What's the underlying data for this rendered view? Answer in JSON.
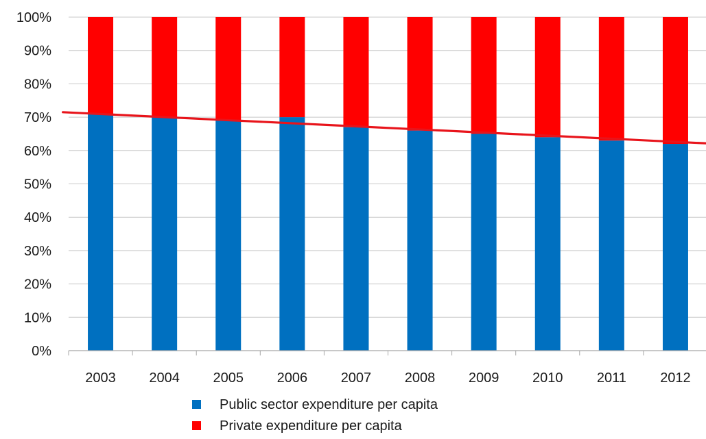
{
  "chart_data": {
    "type": "bar",
    "stacked": true,
    "percent_scale": true,
    "categories": [
      "2003",
      "2004",
      "2005",
      "2006",
      "2007",
      "2008",
      "2009",
      "2010",
      "2011",
      "2012"
    ],
    "series": [
      {
        "name": "Public sector expenditure per capita",
        "color": "#0070C0",
        "values": [
          71,
          70,
          69,
          70,
          67,
          66,
          65,
          64,
          63,
          62
        ]
      },
      {
        "name": "Private expenditure per capita",
        "color": "#FF0000",
        "values": [
          29,
          30,
          31,
          30,
          33,
          34,
          35,
          36,
          37,
          38
        ]
      }
    ],
    "ylim": [
      0,
      100
    ],
    "yticks": [
      "0%",
      "10%",
      "20%",
      "30%",
      "40%",
      "50%",
      "60%",
      "70%",
      "80%",
      "90%",
      "100%"
    ],
    "grid": true,
    "legend_position": "bottom",
    "trend_arrow": {
      "color": "#E8141B",
      "from": [
        "2003",
        71.5
      ],
      "to": [
        "2012",
        62
      ]
    }
  }
}
